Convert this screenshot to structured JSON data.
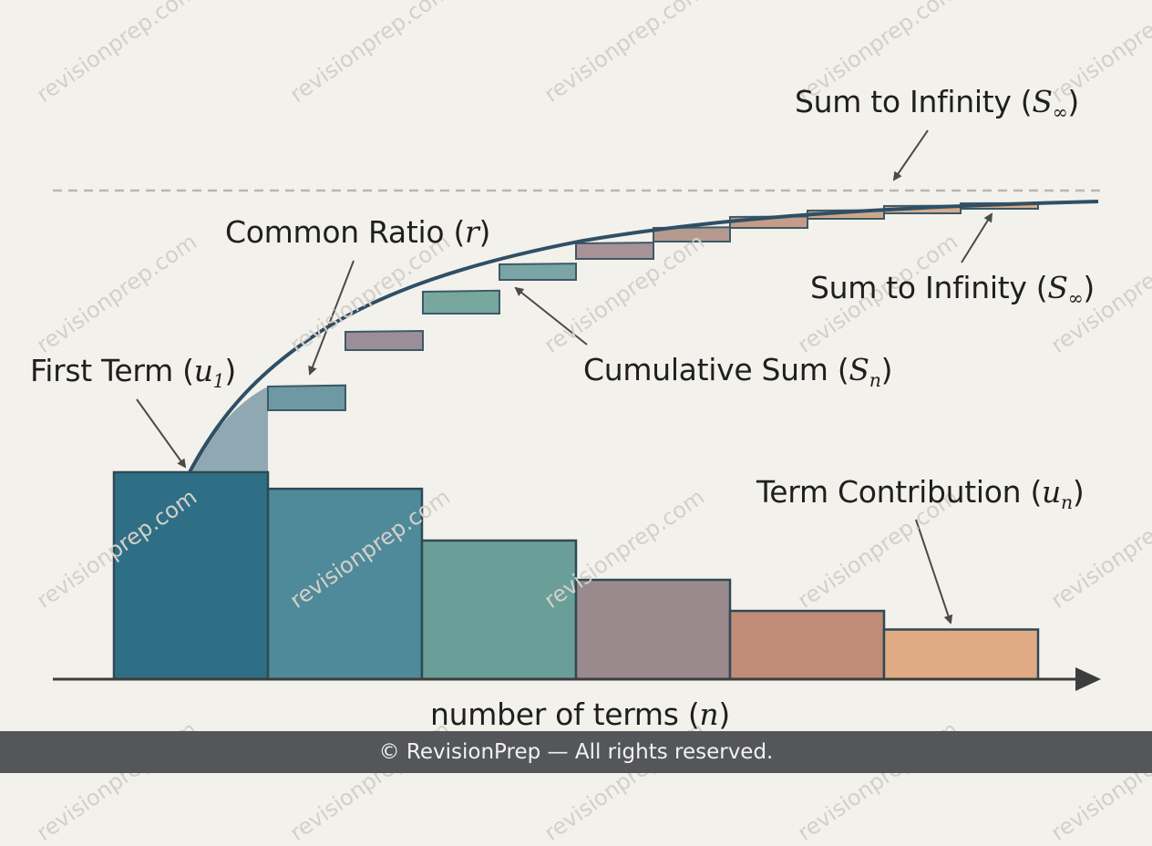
{
  "labels": {
    "sum_to_infinity_top": "Sum to Infinity",
    "sum_to_infinity_top_symbol": "S",
    "sum_to_infinity_top_sub": "∞",
    "common_ratio": "Common Ratio",
    "common_ratio_symbol": "r",
    "sum_to_infinity_right": "Sum to Infinity",
    "sum_to_infinity_right_symbol": "S",
    "sum_to_infinity_right_sub": "∞",
    "first_term": "First Term",
    "first_term_symbol": "u",
    "first_term_sub": "1",
    "cumulative_sum": "Cumulative Sum",
    "cumulative_sum_symbol": "S",
    "cumulative_sum_sub": "n",
    "term_contribution": "Term Contribution",
    "term_contribution_symbol": "u",
    "term_contribution_sub": "n",
    "axis": "number of terms",
    "axis_symbol": "n"
  },
  "watermark": "revisionprep.com",
  "footer": "© RevisionPrep — All rights reserved.",
  "colors": {
    "background": "#f3f1ec",
    "curve": "#2f4f66",
    "asymptote": "#b9b7b2",
    "bars": [
      "#2f6f86",
      "#4f8a9a",
      "#6a9e98",
      "#9a8a8e",
      "#c08c76",
      "#e0ab84"
    ],
    "footer": "#55565a"
  },
  "diagram": {
    "term_values_relative": [
      1.0,
      0.92,
      0.67,
      0.48,
      0.33,
      0.24
    ],
    "step_count": 11
  }
}
